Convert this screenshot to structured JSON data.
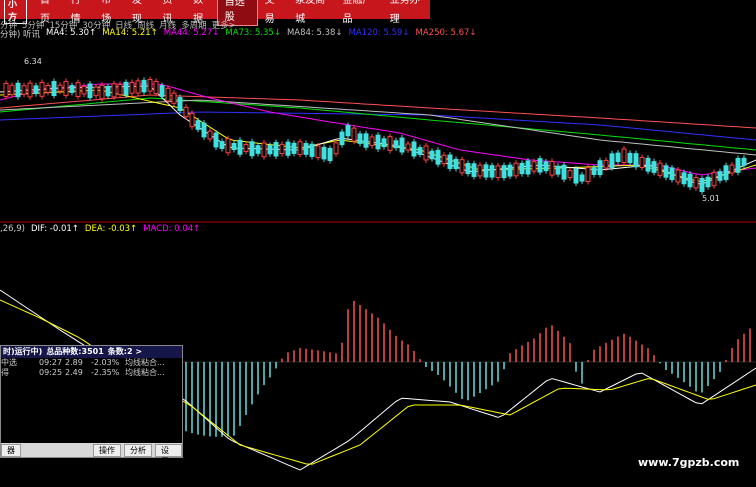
{
  "menu": {
    "logo": "小方",
    "items": [
      "首页",
      "行情",
      "市场",
      "发现",
      "资讯",
      "数据",
      "自选股",
      "交易",
      "泉友商城",
      "金融产品",
      "业务办理"
    ],
    "active": 6
  },
  "periods": [
    "分钟",
    "5分钟",
    "15分钟",
    "30分钟",
    "日线",
    "周线",
    "月线",
    "多周期",
    "更多>"
  ],
  "price_panel": {
    "label": "分钟) 听讯",
    "ma": [
      {
        "text": "MA4: 5.30↑",
        "color": "#ffffff"
      },
      {
        "text": "MA14: 5.21↑",
        "color": "#ffff00"
      },
      {
        "text": "MA44: 5.27↓",
        "color": "#ff00ff"
      },
      {
        "text": "MA73: 5.35↓",
        "color": "#00e000"
      },
      {
        "text": "MA84: 5.38↓",
        "color": "#c0c0c0"
      },
      {
        "text": "MA120: 5.59↓",
        "color": "#3030ff"
      },
      {
        "text": "MA250: 5.67↓",
        "color": "#ff5050"
      }
    ],
    "high_label": "6.34",
    "low_label": "5.01"
  },
  "macd_panel": {
    "label": ",26,9)",
    "indicators": [
      {
        "text": "DIF: -0.01↑",
        "color": "#ffffff"
      },
      {
        "text": "DEA: -0.03↑",
        "color": "#ffff00"
      },
      {
        "text": "MACD: 0.04↑",
        "color": "#ff00ff"
      }
    ]
  },
  "popup": {
    "title": "时)运行中)",
    "total": "总品种数:3501",
    "count": "条数:2 >",
    "rows": [
      [
        "中选",
        "09:27",
        "2.89",
        "-2.03%",
        "均线粘合..."
      ],
      [
        "得",
        "09:25",
        "2.49",
        "-2.35%",
        "均线粘合..."
      ]
    ],
    "left_button": "器",
    "buttons": [
      "操作",
      "分析",
      "设置"
    ]
  },
  "watermark": "www.7gpzb.com"
}
